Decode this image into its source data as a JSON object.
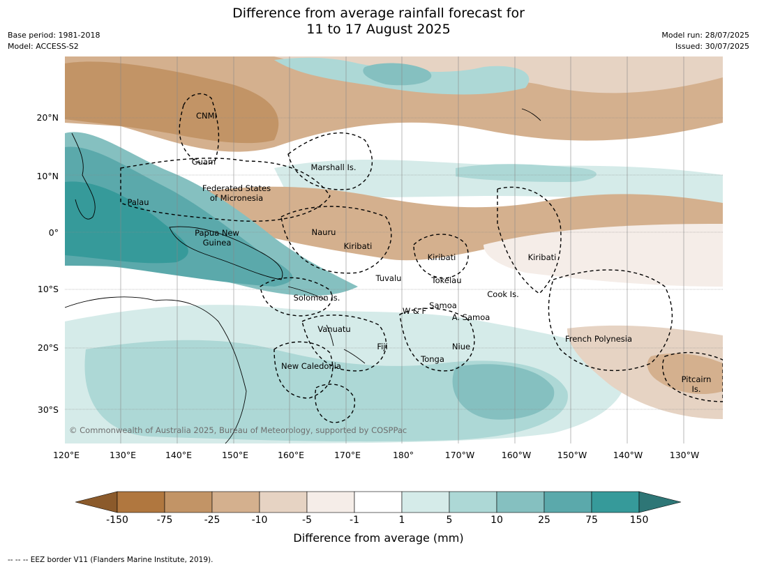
{
  "title": {
    "line1": "Difference from average rainfall forecast for",
    "line2": "11 to 17 August 2025"
  },
  "meta": {
    "base_period": "Base period: 1981-2018",
    "model": "Model: ACCESS-S2",
    "model_run": "Model run: 28/07/2025",
    "issued": "Issued: 30/07/2025"
  },
  "map": {
    "lon_labels": [
      "120°E",
      "130°E",
      "140°E",
      "150°E",
      "160°E",
      "170°E",
      "180°",
      "170°W",
      "160°W",
      "150°W",
      "140°W",
      "130°W"
    ],
    "lat_labels": [
      "20°N",
      "10°N",
      "0°",
      "10°S",
      "20°S",
      "30°S"
    ],
    "regions": [
      "CNMI",
      "Guam",
      "Marshall Is.",
      "Federated States\nof Micronesia",
      "Palau",
      "Nauru",
      "Papua New\nGuinea",
      "Kiribati",
      "Kiribati",
      "Kiribati",
      "Tuvalu",
      "Tokelau",
      "Cook Is.",
      "Solomon Is.",
      "Samoa",
      "W & F",
      "A. Samoa",
      "Vanuatu",
      "Fiji",
      "Niue",
      "French Polynesia",
      "Tonga",
      "New Caledonia",
      "Pitcairn\nIs."
    ],
    "copyright": "© Commonwealth of Australia 2025, Bureau of Meteorology, supported by COSPPac"
  },
  "legend": {
    "title": "Difference from average (mm)",
    "ticks": [
      "-150",
      "-75",
      "-25",
      "-10",
      "-5",
      "-1",
      "1",
      "5",
      "10",
      "25",
      "75",
      "150"
    ],
    "colors": {
      "dry_extreme": "#8b5a2b",
      "c_150_75": "#b0773f",
      "c_75_25": "#c29466",
      "c_25_10": "#d4b08e",
      "c_10_5": "#e6d3c3",
      "c_5_1": "#f5ede8",
      "c_1_1": "#ffffff",
      "c_1_5": "#d5ebe9",
      "c_5_10": "#add8d6",
      "c_10_25": "#85c0c0",
      "c_25_75": "#5ba9ab",
      "c_75_150": "#369a9a",
      "wet_extreme": "#2e7676"
    }
  },
  "footnote": "--  --  -- EEZ border V11 (Flanders Marine Institute, 2019)."
}
